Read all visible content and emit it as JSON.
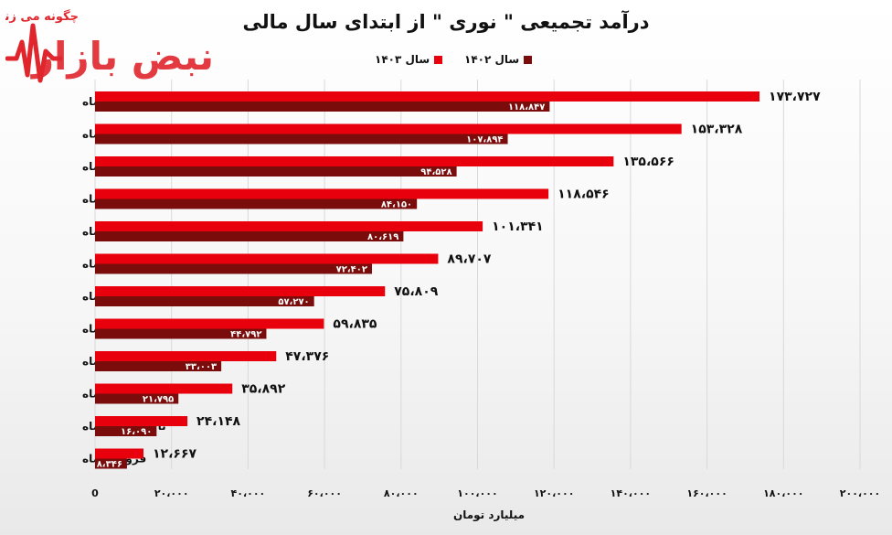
{
  "watermark": {
    "tagline": "چگونه می زند",
    "brand": "نبض بازار"
  },
  "chart_data": {
    "type": "bar",
    "orientation": "horizontal",
    "title": "درآمد تجمیعی \" نوری \" از ابتدای سال مالی",
    "xlabel": "میلیارد تومان",
    "ylabel": "",
    "xlim": [
      0,
      200000
    ],
    "xticks": [
      0,
      20000,
      40000,
      60000,
      80000,
      100000,
      120000,
      140000,
      160000,
      180000,
      200000
    ],
    "xtick_labels": [
      "0",
      "۲۰،۰۰۰",
      "۴۰،۰۰۰",
      "۶۰،۰۰۰",
      "۸۰،۰۰۰",
      "۱۰۰،۰۰۰",
      "۱۲۰،۰۰۰",
      "۱۴۰،۰۰۰",
      "۱۶۰،۰۰۰",
      "۱۸۰،۰۰۰",
      "۲۰۰،۰۰۰"
    ],
    "grid": true,
    "legend_position": "top-center",
    "categories": [
      "تا اسفندماه",
      "تا بهمن‌ماه",
      "تا دی‌ماه",
      "تا آذرماه",
      "تا آبان‌ماه",
      "تا مهرماه",
      "تا شهریورماه",
      "تا مردادماه",
      "تا تیرماه",
      "تا خردادماه",
      "تا اردیبهشت‌ماه",
      "فروردین‌ماه"
    ],
    "series": [
      {
        "name": "سال ۱۴۰۳",
        "color": "#e8000d",
        "values": [
          173727,
          153328,
          135566,
          118546,
          101341,
          89707,
          75809,
          59835,
          47376,
          35892,
          24148,
          12667
        ],
        "labels": [
          "۱۷۳،۷۲۷",
          "۱۵۳،۳۲۸",
          "۱۳۵،۵۶۶",
          "۱۱۸،۵۴۶",
          "۱۰۱،۳۴۱",
          "۸۹،۷۰۷",
          "۷۵،۸۰۹",
          "۵۹،۸۳۵",
          "۴۷،۳۷۶",
          "۳۵،۸۹۲",
          "۲۴،۱۴۸",
          "۱۲،۶۶۷"
        ]
      },
      {
        "name": "سال ۱۴۰۲",
        "color": "#7a0c0c",
        "values": [
          118847,
          107894,
          94528,
          84150,
          80619,
          72402,
          57270,
          44792,
          33003,
          21795,
          16090,
          8346
        ],
        "labels": [
          "۱۱۸،۸۴۷",
          "۱۰۷،۸۹۴",
          "۹۴،۵۲۸",
          "۸۴،۱۵۰",
          "۸۰،۶۱۹",
          "۷۲،۴۰۲",
          "۵۷،۲۷۰",
          "۴۴،۷۹۲",
          "۳۳،۰۰۳",
          "۲۱،۷۹۵",
          "۱۶،۰۹۰",
          "۸،۳۴۶"
        ]
      }
    ]
  }
}
